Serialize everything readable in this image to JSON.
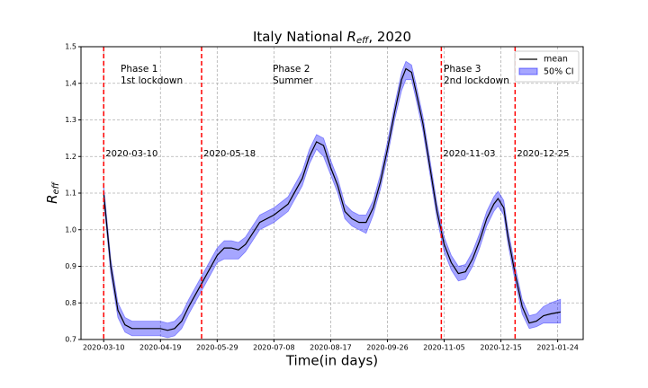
{
  "chart_data": {
    "type": "line",
    "title_prefix": "Italy National ",
    "title_symbol": "R",
    "title_subscript": "eff",
    "title_suffix": ", 2020",
    "xlabel": "Time(in days)",
    "ylabel_symbol": "R",
    "ylabel_subscript": "eff",
    "x": [
      "2020-03-10",
      "2020-03-15",
      "2020-03-20",
      "2020-03-25",
      "2020-03-30",
      "2020-04-09",
      "2020-04-19",
      "2020-04-24",
      "2020-04-29",
      "2020-05-04",
      "2020-05-09",
      "2020-05-19",
      "2020-05-29",
      "2020-06-03",
      "2020-06-08",
      "2020-06-13",
      "2020-06-18",
      "2020-06-28",
      "2020-07-08",
      "2020-07-18",
      "2020-07-28",
      "2020-08-02",
      "2020-08-07",
      "2020-08-12",
      "2020-08-17",
      "2020-08-22",
      "2020-08-27",
      "2020-09-01",
      "2020-09-06",
      "2020-09-11",
      "2020-09-16",
      "2020-09-21",
      "2020-09-26",
      "2020-10-01",
      "2020-10-06",
      "2020-10-09",
      "2020-10-13",
      "2020-10-16",
      "2020-10-21",
      "2020-10-26",
      "2020-10-31",
      "2020-11-05",
      "2020-11-10",
      "2020-11-15",
      "2020-11-20",
      "2020-11-25",
      "2020-11-30",
      "2020-12-05",
      "2020-12-10",
      "2020-12-13",
      "2020-12-17",
      "2020-12-20",
      "2020-12-25",
      "2020-12-30",
      "2021-01-04",
      "2021-01-09",
      "2021-01-14",
      "2021-01-19",
      "2021-01-26"
    ],
    "series": [
      {
        "name": "mean",
        "color": "#000000",
        "values": [
          1.1,
          0.9,
          0.78,
          0.74,
          0.73,
          0.73,
          0.73,
          0.725,
          0.73,
          0.75,
          0.79,
          0.86,
          0.93,
          0.95,
          0.95,
          0.945,
          0.96,
          1.02,
          1.04,
          1.07,
          1.14,
          1.2,
          1.24,
          1.23,
          1.17,
          1.12,
          1.05,
          1.03,
          1.02,
          1.02,
          1.06,
          1.13,
          1.22,
          1.32,
          1.41,
          1.44,
          1.43,
          1.38,
          1.29,
          1.17,
          1.05,
          0.96,
          0.91,
          0.88,
          0.885,
          0.92,
          0.97,
          1.03,
          1.07,
          1.085,
          1.06,
          0.98,
          0.88,
          0.79,
          0.745,
          0.75,
          0.765,
          0.77,
          0.775
        ]
      }
    ],
    "band": {
      "name": "50% CI",
      "color": "#0000ff",
      "lower": [
        1.08,
        0.88,
        0.76,
        0.72,
        0.71,
        0.71,
        0.71,
        0.705,
        0.71,
        0.73,
        0.77,
        0.84,
        0.91,
        0.92,
        0.92,
        0.92,
        0.94,
        1.0,
        1.02,
        1.05,
        1.12,
        1.18,
        1.22,
        1.2,
        1.15,
        1.1,
        1.03,
        1.01,
        1.0,
        0.99,
        1.04,
        1.11,
        1.2,
        1.3,
        1.38,
        1.41,
        1.41,
        1.36,
        1.27,
        1.15,
        1.03,
        0.94,
        0.89,
        0.86,
        0.865,
        0.9,
        0.95,
        1.01,
        1.05,
        1.065,
        1.04,
        0.96,
        0.86,
        0.77,
        0.73,
        0.735,
        0.745,
        0.745,
        0.745
      ],
      "upper": [
        1.12,
        0.92,
        0.8,
        0.76,
        0.75,
        0.75,
        0.75,
        0.745,
        0.75,
        0.77,
        0.81,
        0.88,
        0.95,
        0.97,
        0.97,
        0.965,
        0.98,
        1.04,
        1.06,
        1.09,
        1.16,
        1.22,
        1.26,
        1.25,
        1.19,
        1.14,
        1.07,
        1.05,
        1.04,
        1.04,
        1.08,
        1.15,
        1.24,
        1.34,
        1.43,
        1.46,
        1.45,
        1.4,
        1.31,
        1.19,
        1.07,
        0.98,
        0.93,
        0.9,
        0.905,
        0.94,
        0.99,
        1.05,
        1.09,
        1.105,
        1.08,
        1.0,
        0.9,
        0.81,
        0.765,
        0.77,
        0.79,
        0.8,
        0.81
      ]
    },
    "vlines": [
      "2020-03-10",
      "2020-05-18",
      "2020-11-03",
      "2020-12-25"
    ],
    "vline_color": "#ff0000",
    "vline_label_color": "#008000",
    "phases": [
      [
        "Phase 1",
        "1st lockdown"
      ],
      [
        "Phase 2",
        "Summer"
      ],
      [
        "Phase 3",
        "2nd lockdown"
      ]
    ],
    "xlim": [
      "2020-02-23",
      "2021-02-11"
    ],
    "xticks": [
      "2020-03-10",
      "2020-04-19",
      "2020-05-29",
      "2020-07-08",
      "2020-08-17",
      "2020-09-26",
      "2020-11-05",
      "2020-12-15",
      "2021-01-24"
    ],
    "ylim": [
      0.7,
      1.5
    ],
    "yticks": [
      0.7,
      0.8,
      0.9,
      {
        "value": 1,
        "label": "1.0"
      },
      1.1,
      1.2,
      1.3,
      1.4,
      1.5
    ],
    "grid": true,
    "legend": "upper right"
  }
}
